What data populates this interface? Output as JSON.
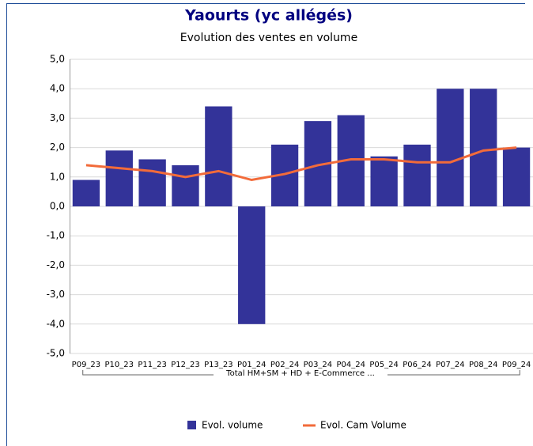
{
  "chart_data": {
    "type": "bar",
    "title": "Yaourts (yc allégés)",
    "subtitle": "Evolution des ventes en volume",
    "group_label": "Total HM+SM + HD + E-Commerce ...",
    "categories": [
      "P09_23",
      "P10_23",
      "P11_23",
      "P12_23",
      "P13_23",
      "P01_24",
      "P02_24",
      "P03_24",
      "P04_24",
      "P05_24",
      "P06_24",
      "P07_24",
      "P08_24",
      "P09_24"
    ],
    "series": [
      {
        "name": "Evol. volume",
        "type": "bar",
        "color": "#333399",
        "values": [
          0.9,
          1.9,
          1.6,
          1.4,
          3.4,
          -4.0,
          2.1,
          2.9,
          3.1,
          1.7,
          2.1,
          4.0,
          4.0,
          2.0
        ]
      },
      {
        "name": "Evol. Cam Volume",
        "type": "line",
        "color": "#f26b3a",
        "values": [
          1.4,
          1.3,
          1.2,
          1.0,
          1.2,
          0.9,
          1.1,
          1.4,
          1.6,
          1.6,
          1.5,
          1.5,
          1.9,
          2.0
        ]
      }
    ],
    "ylim": [
      -5,
      5
    ],
    "yticks": [
      {
        "value": 5,
        "label": "5,0"
      },
      {
        "value": 4,
        "label": "4,0"
      },
      {
        "value": 3,
        "label": "3,0"
      },
      {
        "value": 2,
        "label": "2,0"
      },
      {
        "value": 1,
        "label": "1,0"
      },
      {
        "value": 0,
        "label": "0,0"
      },
      {
        "value": -1,
        "label": "-1,0"
      },
      {
        "value": -2,
        "label": "-2,0"
      },
      {
        "value": -3,
        "label": "-3,0"
      },
      {
        "value": -4,
        "label": "-4,0"
      },
      {
        "value": -5,
        "label": "-5,0"
      }
    ],
    "grid": true,
    "legend": "bottom"
  }
}
